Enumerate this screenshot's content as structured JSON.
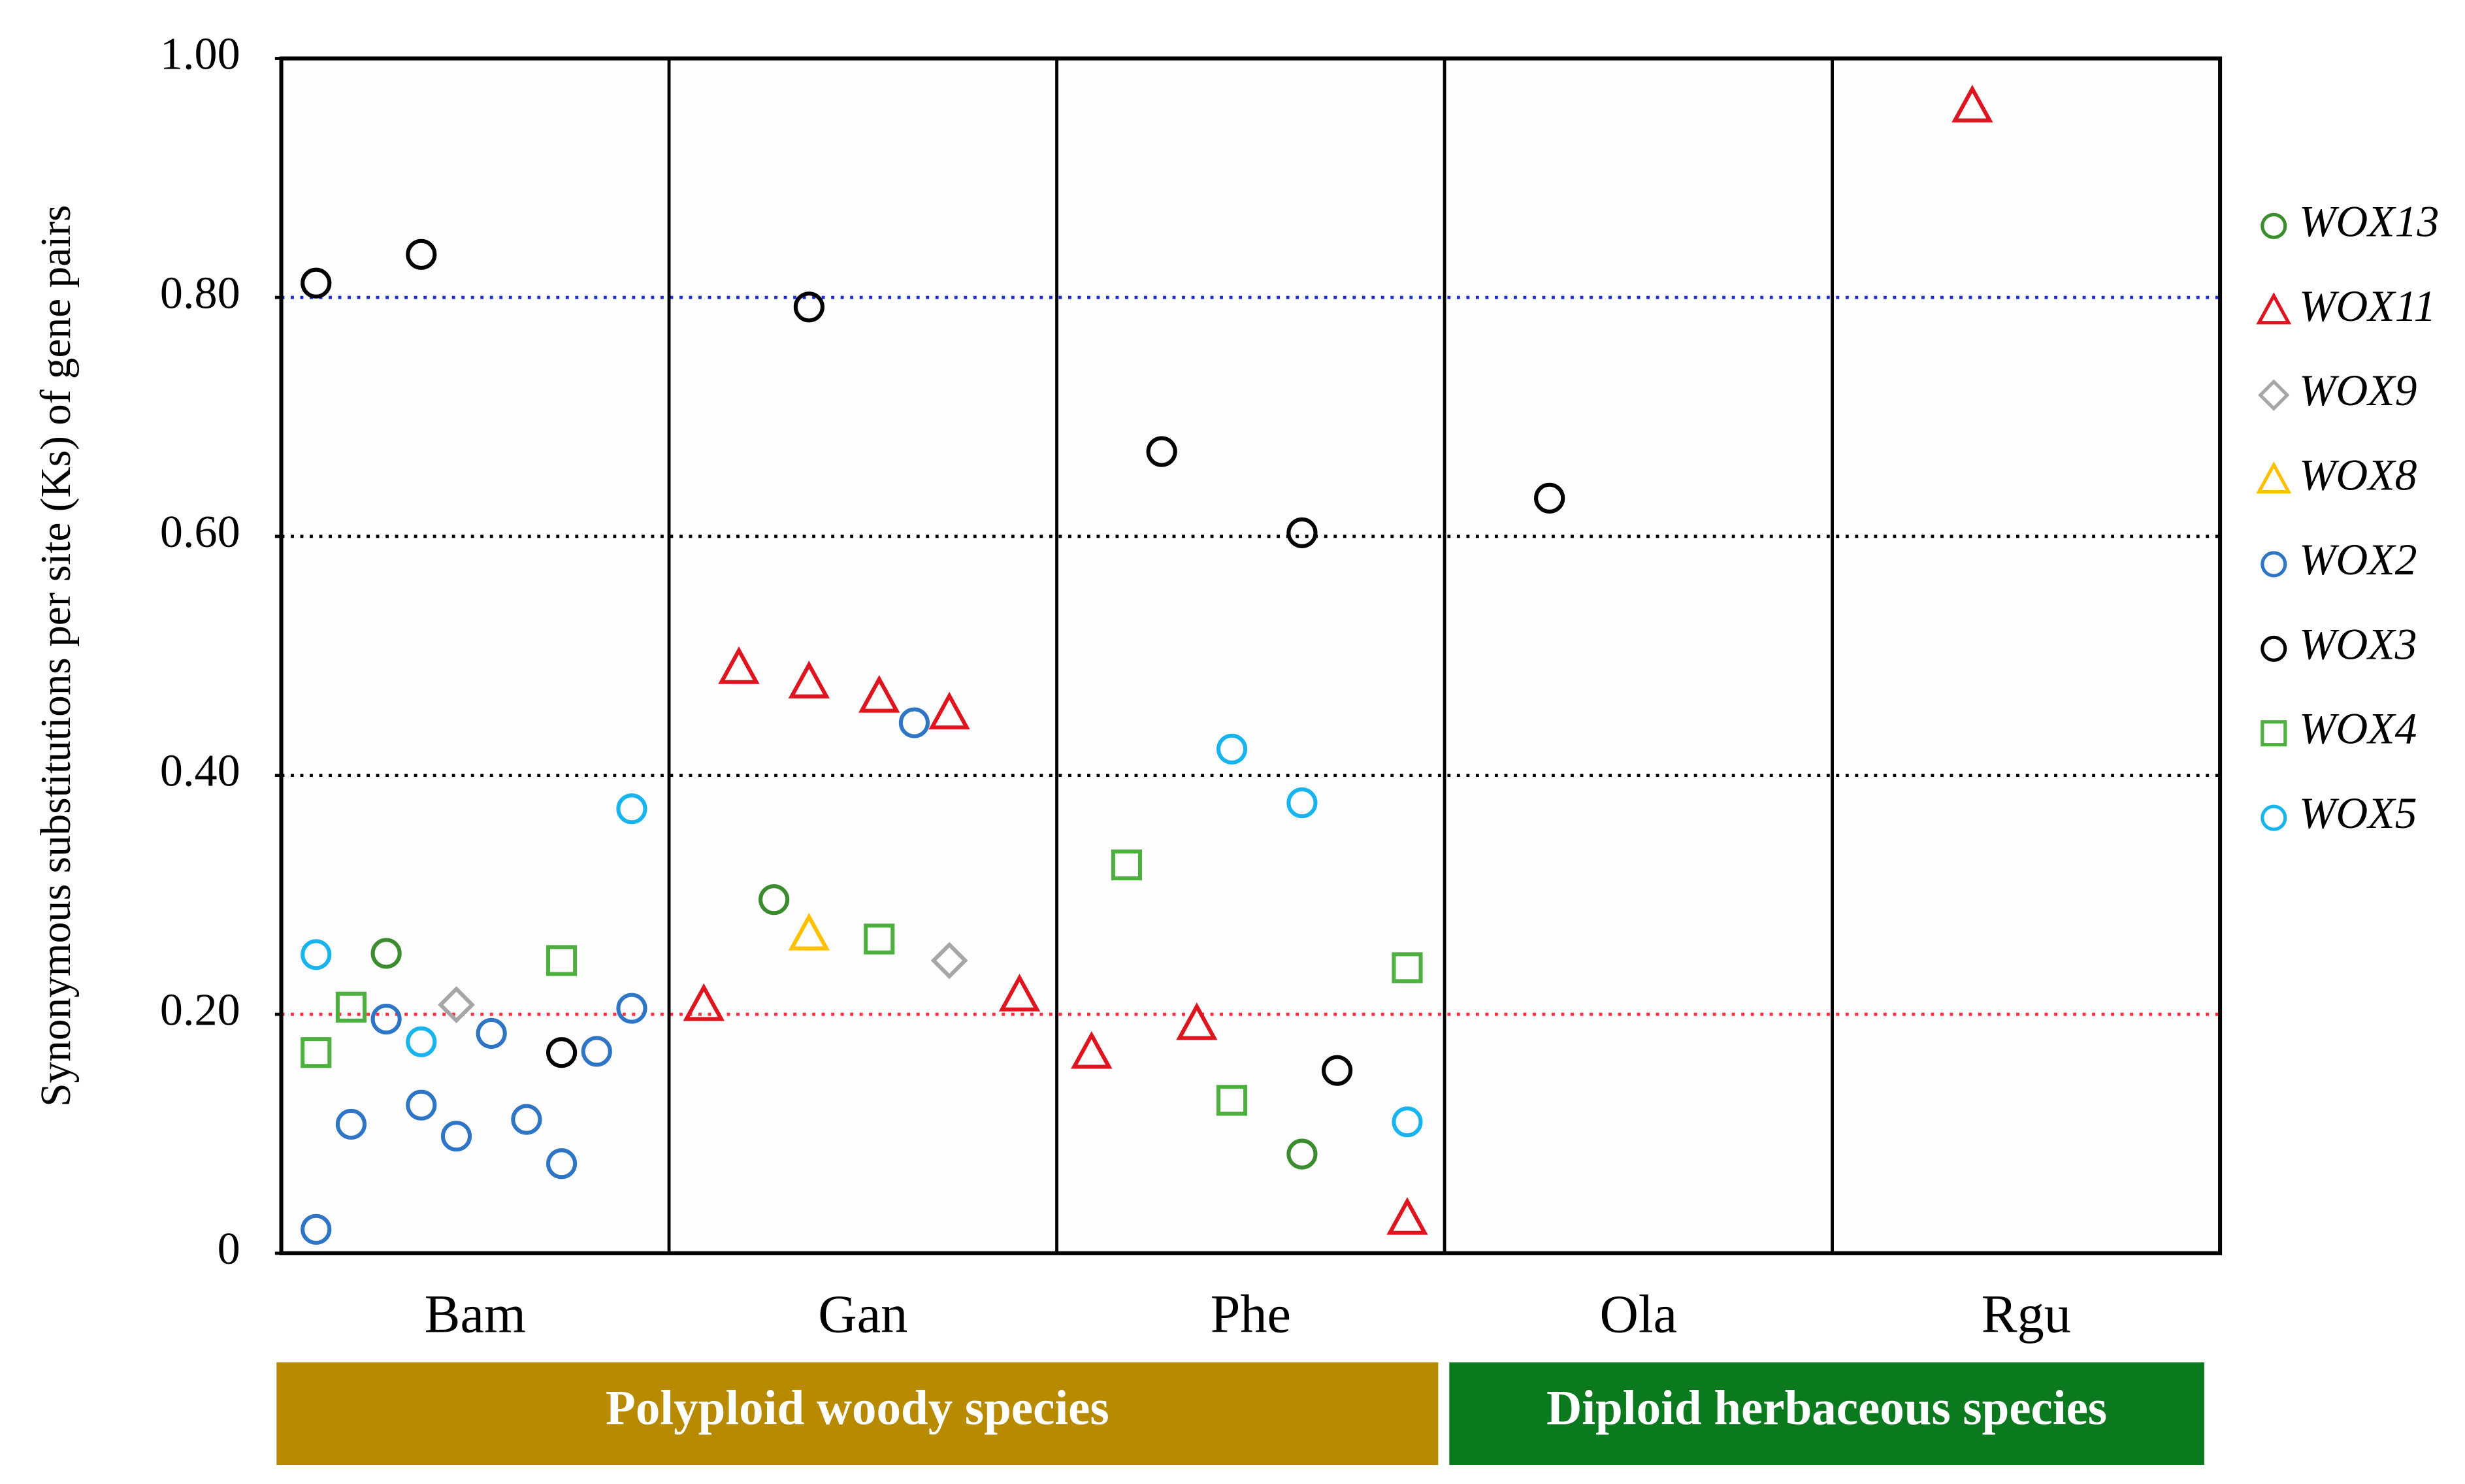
{
  "chart_data": {
    "type": "scatter",
    "ylabel": "Synonymous substitutions per site (Ks) of gene pairs",
    "categories": [
      "Bam",
      "Gan",
      "Phe",
      "Ola",
      "Rgu"
    ],
    "ylim": [
      0,
      1
    ],
    "yticks": [
      0,
      {
        "value": 0.2,
        "label": "0.20"
      },
      {
        "value": 0.4,
        "label": "0.40"
      },
      {
        "value": 0.6,
        "label": "0.60"
      },
      {
        "value": 0.8,
        "label": "0.80"
      },
      {
        "value": 1,
        "label": "1.00"
      }
    ],
    "reference_lines": [
      {
        "value": 0.2,
        "color": "#ff2a3c"
      },
      {
        "value": 0.4,
        "color": "#000000"
      },
      {
        "value": 0.6,
        "color": "#000000"
      },
      {
        "value": 0.8,
        "color": "#1a2bd6"
      }
    ],
    "groups": [
      {
        "label": "Polyploid woody species",
        "color": "#b88a00",
        "categories": [
          "Bam",
          "Gan",
          "Phe"
        ]
      },
      {
        "label": "Diploid herbaceous species",
        "color": "#0b7a1f",
        "categories": [
          "Ola",
          "Rgu"
        ]
      }
    ],
    "series": [
      {
        "name": "WOX13",
        "color": "#3a8c2e",
        "marker": "circle",
        "categories": [
          "Bam",
          "Gan",
          "Phe"
        ],
        "values": [
          0.251,
          0.296,
          0.083
        ]
      },
      {
        "name": "WOX11",
        "color": "#e0141e",
        "marker": "triangle",
        "categories": [
          "Gan",
          "Gan",
          "Gan",
          "Gan",
          "Gan",
          "Gan",
          "Phe",
          "Phe",
          "Phe",
          "Rgu"
        ],
        "values": [
          0.208,
          0.49,
          0.478,
          0.466,
          0.452,
          0.216,
          0.168,
          0.192,
          0.029,
          0.96
        ]
      },
      {
        "name": "WOX9",
        "color": "#a6a6a6",
        "marker": "diamond",
        "categories": [
          "Bam",
          "Gan"
        ],
        "values": [
          0.208,
          0.245
        ]
      },
      {
        "name": "WOX8",
        "color": "#ffc000",
        "marker": "triangle",
        "categories": [
          "Gan"
        ],
        "values": [
          0.267
        ]
      },
      {
        "name": "WOX2",
        "color": "#2e75c6",
        "marker": "circle",
        "categories": [
          "Bam",
          "Bam",
          "Bam",
          "Bam",
          "Bam",
          "Bam",
          "Bam",
          "Bam",
          "Bam",
          "Bam",
          "Gan"
        ],
        "values": [
          0.02,
          0.108,
          0.196,
          0.124,
          0.098,
          0.184,
          0.112,
          0.075,
          0.169,
          0.205,
          0.444
        ]
      },
      {
        "name": "WOX3",
        "color": "#000000",
        "marker": "circle",
        "categories": [
          "Bam",
          "Bam",
          "Bam",
          "Gan",
          "Phe",
          "Phe",
          "Phe",
          "Ola"
        ],
        "values": [
          0.812,
          0.836,
          0.168,
          0.792,
          0.671,
          0.603,
          0.153,
          0.632
        ]
      },
      {
        "name": "WOX4",
        "color": "#4caf3e",
        "marker": "square",
        "categories": [
          "Bam",
          "Bam",
          "Bam",
          "Gan",
          "Phe",
          "Phe",
          "Phe"
        ],
        "values": [
          0.168,
          0.206,
          0.245,
          0.263,
          0.325,
          0.128,
          0.239
        ]
      },
      {
        "name": "WOX5",
        "color": "#18b4ee",
        "marker": "circle",
        "categories": [
          "Bam",
          "Bam",
          "Bam",
          "Phe",
          "Phe",
          "Phe"
        ],
        "values": [
          0.25,
          0.177,
          0.372,
          0.422,
          0.377,
          0.11
        ]
      }
    ]
  }
}
